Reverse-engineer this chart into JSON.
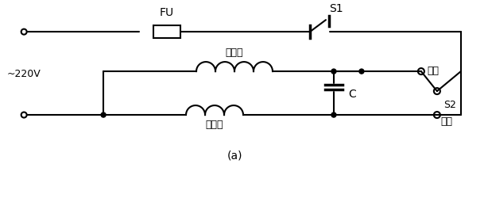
{
  "fig_width": 6.14,
  "fig_height": 2.51,
  "dpi": 100,
  "bg_color": "#ffffff",
  "line_color": "#000000",
  "label_220": "~220V",
  "label_FU": "FU",
  "label_S1": "S1",
  "label_main_winding": "主绕组",
  "label_aux_winding": "副绕组",
  "label_C": "C",
  "label_forward": "正转",
  "label_reverse": "反转",
  "label_S2": "S2",
  "label_a": "(a)"
}
